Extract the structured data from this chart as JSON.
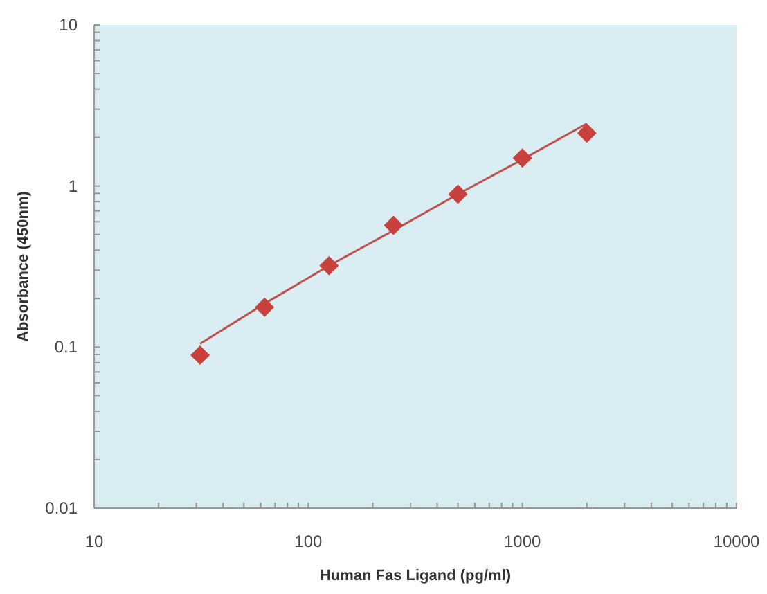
{
  "chart_data": {
    "type": "scatter",
    "xlabel": "Human Fas Ligand (pg/ml)",
    "ylabel": "Absorbance (450nm)",
    "log": "xy",
    "grid": false,
    "xlim": [
      10,
      10000
    ],
    "ylim": [
      0.01,
      10
    ],
    "xticks": [
      10,
      {
        "value": 20,
        "label": null
      },
      {
        "value": 30,
        "label": null
      },
      {
        "value": 40,
        "label": null
      },
      {
        "value": 50,
        "label": null
      },
      {
        "value": 60,
        "label": null
      },
      {
        "value": 70,
        "label": null
      },
      {
        "value": 80,
        "label": null
      },
      {
        "value": 90,
        "label": null
      },
      100,
      {
        "value": 200,
        "label": null
      },
      {
        "value": 300,
        "label": null
      },
      {
        "value": 400,
        "label": null
      },
      {
        "value": 500,
        "label": null
      },
      {
        "value": 600,
        "label": null
      },
      {
        "value": 700,
        "label": null
      },
      {
        "value": 800,
        "label": null
      },
      {
        "value": 900,
        "label": null
      },
      1000,
      {
        "value": 2000,
        "label": null
      },
      {
        "value": 3000,
        "label": null
      },
      {
        "value": 4000,
        "label": null
      },
      {
        "value": 5000,
        "label": null
      },
      {
        "value": 6000,
        "label": null
      },
      {
        "value": 7000,
        "label": null
      },
      {
        "value": 8000,
        "label": null
      },
      {
        "value": 9000,
        "label": null
      },
      10000
    ],
    "yticks": [
      0.01,
      {
        "value": 0.02,
        "label": null
      },
      {
        "value": 0.03,
        "label": null
      },
      {
        "value": 0.04,
        "label": null
      },
      {
        "value": 0.05,
        "label": null
      },
      {
        "value": 0.06,
        "label": null
      },
      {
        "value": 0.07,
        "label": null
      },
      {
        "value": 0.08,
        "label": null
      },
      {
        "value": 0.09,
        "label": null
      },
      0.1,
      {
        "value": 0.2,
        "label": null
      },
      {
        "value": 0.3,
        "label": null
      },
      {
        "value": 0.4,
        "label": null
      },
      {
        "value": 0.5,
        "label": null
      },
      {
        "value": 0.6,
        "label": null
      },
      {
        "value": 0.7,
        "label": null
      },
      {
        "value": 0.8,
        "label": null
      },
      {
        "value": 0.9,
        "label": null
      },
      1,
      {
        "value": 2,
        "label": null
      },
      {
        "value": 3,
        "label": null
      },
      {
        "value": 4,
        "label": null
      },
      {
        "value": 5,
        "label": null
      },
      {
        "value": 6,
        "label": null
      },
      {
        "value": 7,
        "label": null
      },
      {
        "value": 8,
        "label": null
      },
      {
        "value": 9,
        "label": null
      },
      10
    ],
    "series": [
      {
        "type": "line",
        "color": "#c0504d",
        "marker": "none",
        "line_style": "solid",
        "x": [
          31.25,
          62.5,
          125,
          250,
          500,
          1000,
          2000
        ],
        "values": [
          0.105,
          0.186,
          0.32,
          0.53,
          0.89,
          1.46,
          2.44
        ]
      },
      {
        "color": "#c8413c",
        "marker": "diamond",
        "x": [
          31.25,
          62.5,
          125,
          250,
          500,
          1000,
          2000
        ],
        "values": [
          0.089,
          0.177,
          0.32,
          0.57,
          0.89,
          1.49,
          2.13
        ]
      }
    ]
  }
}
